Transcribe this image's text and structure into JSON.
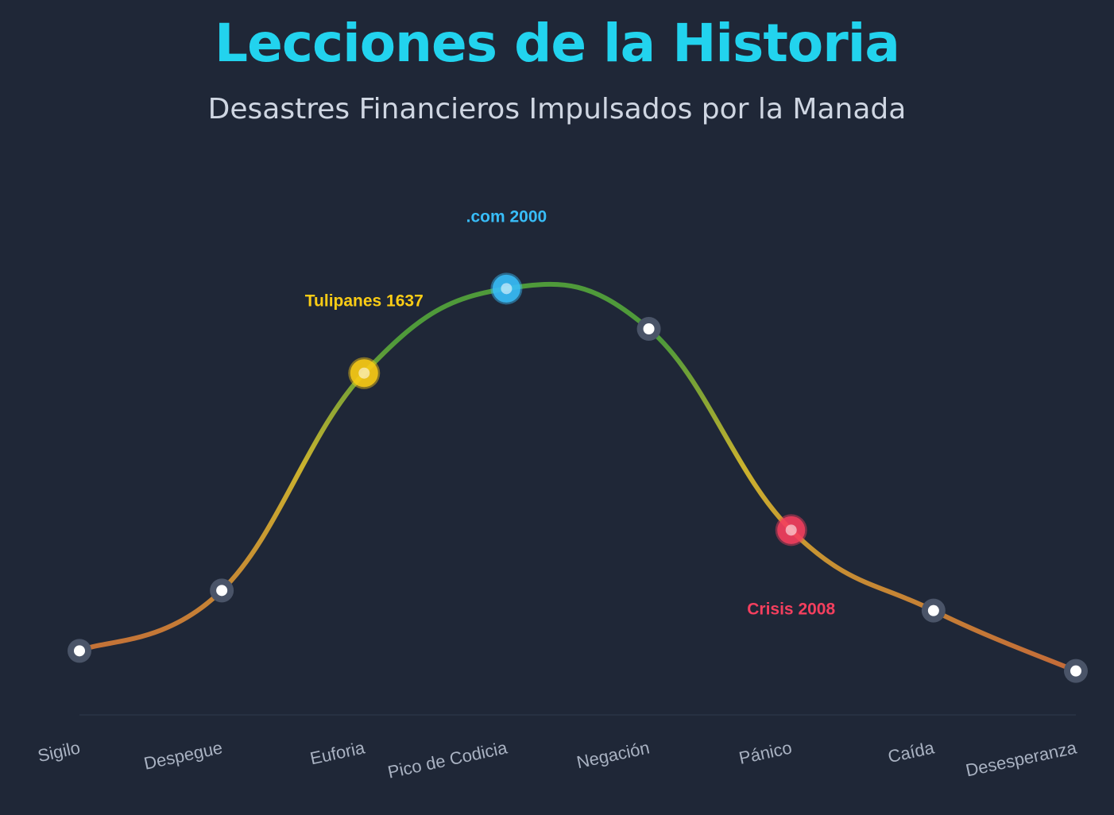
{
  "header": {
    "title": "Lecciones de la Historia",
    "subtitle": "Desastres Financieros Impulsados por la Manada"
  },
  "chart_data": {
    "type": "line",
    "title": "Lecciones de la Historia",
    "subtitle": "Desastres Financieros Impulsados por la Manada",
    "xlabel": "",
    "ylabel": "",
    "grid": false,
    "legend": "none",
    "categories": [
      "Sigilo",
      "Despegue",
      "Euforia",
      "Pico de Codicia",
      "Negación",
      "Pánico",
      "Caída",
      "Desesperanza"
    ],
    "values": [
      10,
      25,
      79,
      100,
      90,
      40,
      20,
      5
    ],
    "ylim": [
      0,
      105
    ],
    "events": [
      {
        "label": "Tulipanes 1637",
        "index": 2,
        "color": "#facc15",
        "position": "above-left"
      },
      {
        "label": ".com 2000",
        "index": 3,
        "color": "#38bdf8",
        "position": "above"
      },
      {
        "label": "Crisis 2008",
        "index": 5,
        "color": "#f43f5e",
        "position": "below"
      }
    ],
    "line_colors": {
      "low": "#c2603a",
      "mid": "#cbb22e",
      "high": "#4f9a3a"
    }
  }
}
